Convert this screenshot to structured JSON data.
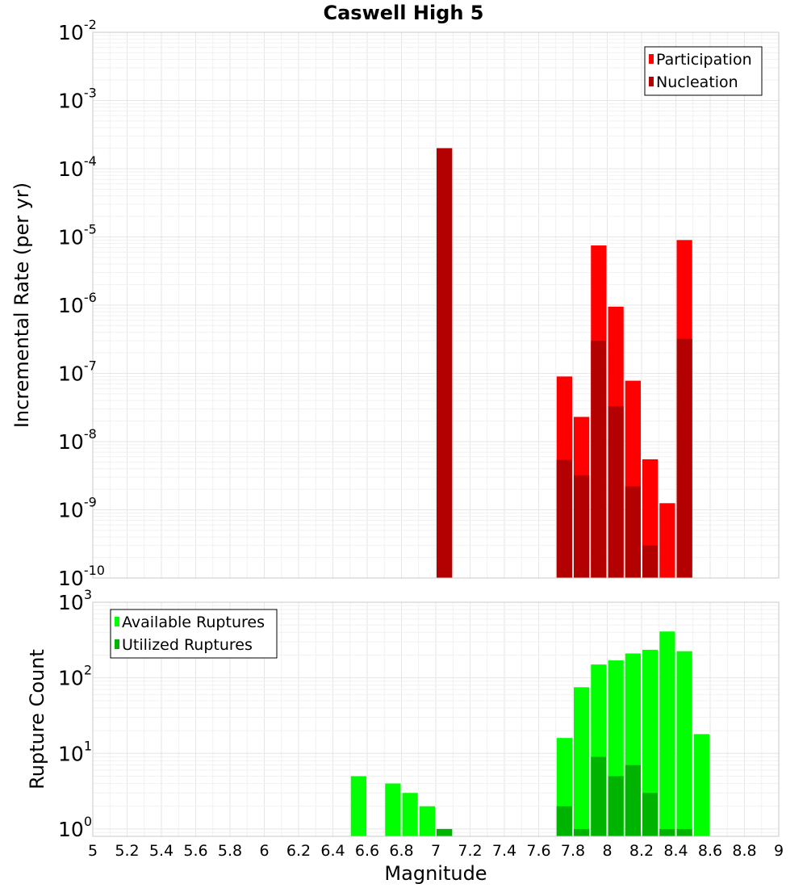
{
  "chart_data": {
    "title": "Caswell High 5",
    "xlabel": "Magnitude",
    "x_ticks": [
      "5",
      "5.2",
      "5.4",
      "5.6",
      "5.8",
      "6",
      "6.2",
      "6.4",
      "6.6",
      "6.8",
      "7",
      "7.2",
      "7.4",
      "7.6",
      "7.8",
      "8",
      "8.2",
      "8.4",
      "8.6",
      "8.8",
      "9"
    ],
    "xlim": [
      5,
      9
    ],
    "panels": [
      {
        "id": "rate",
        "type": "bar",
        "ylabel": "Incremental Rate (per yr)",
        "y_scale": "log",
        "ylim": [
          1e-10,
          0.01
        ],
        "y_ticks": [
          {
            "base": "10",
            "exp": "-10",
            "value": 1e-10
          },
          {
            "base": "10",
            "exp": "-9",
            "value": 1e-09
          },
          {
            "base": "10",
            "exp": "-8",
            "value": 1e-08
          },
          {
            "base": "10",
            "exp": "-7",
            "value": 1e-07
          },
          {
            "base": "10",
            "exp": "-6",
            "value": 1e-06
          },
          {
            "base": "10",
            "exp": "-5",
            "value": 1e-05
          },
          {
            "base": "10",
            "exp": "-4",
            "value": 0.0001
          },
          {
            "base": "10",
            "exp": "-3",
            "value": 0.001
          },
          {
            "base": "10",
            "exp": "-2",
            "value": 0.01
          }
        ],
        "legend_position": "top-right",
        "bin_width": 0.1,
        "series": [
          {
            "name": "Participation",
            "color": "#ff0000",
            "points": [
              {
                "x": 7.05,
                "y": 0.0002
              },
              {
                "x": 7.75,
                "y": 9e-08
              },
              {
                "x": 7.85,
                "y": 2.3e-08
              },
              {
                "x": 7.95,
                "y": 7.5e-06
              },
              {
                "x": 8.05,
                "y": 9.5e-07
              },
              {
                "x": 8.15,
                "y": 7.8e-08
              },
              {
                "x": 8.25,
                "y": 5.5e-09
              },
              {
                "x": 8.35,
                "y": 1.25e-09
              },
              {
                "x": 8.45,
                "y": 9e-06
              }
            ]
          },
          {
            "name": "Nucleation",
            "color": "#b30000",
            "points": [
              {
                "x": 7.05,
                "y": 0.0002
              },
              {
                "x": 7.75,
                "y": 5.4e-09
              },
              {
                "x": 7.85,
                "y": 3.2e-09
              },
              {
                "x": 7.95,
                "y": 3e-07
              },
              {
                "x": 8.05,
                "y": 3.3e-08
              },
              {
                "x": 8.15,
                "y": 2.2e-09
              },
              {
                "x": 8.25,
                "y": 3e-10
              },
              {
                "x": 8.45,
                "y": 3.2e-07
              }
            ]
          }
        ]
      },
      {
        "id": "count",
        "type": "bar",
        "ylabel": "Rupture Count",
        "y_scale": "log",
        "ylim": [
          0.8,
          1000
        ],
        "y_ticks": [
          {
            "base": "10",
            "exp": "0",
            "value": 1
          },
          {
            "base": "10",
            "exp": "1",
            "value": 10
          },
          {
            "base": "10",
            "exp": "2",
            "value": 100
          },
          {
            "base": "10",
            "exp": "3",
            "value": 1000
          }
        ],
        "legend_position": "top-left",
        "bin_width": 0.1,
        "series": [
          {
            "name": "Available Ruptures",
            "color": "#00ff00",
            "points": [
              {
                "x": 6.55,
                "y": 5
              },
              {
                "x": 6.75,
                "y": 4
              },
              {
                "x": 6.85,
                "y": 3
              },
              {
                "x": 6.95,
                "y": 2
              },
              {
                "x": 7.05,
                "y": 1
              },
              {
                "x": 7.75,
                "y": 16
              },
              {
                "x": 7.85,
                "y": 75
              },
              {
                "x": 7.95,
                "y": 150
              },
              {
                "x": 8.05,
                "y": 170
              },
              {
                "x": 8.15,
                "y": 210
              },
              {
                "x": 8.25,
                "y": 235
              },
              {
                "x": 8.35,
                "y": 410
              },
              {
                "x": 8.45,
                "y": 225
              },
              {
                "x": 8.55,
                "y": 18
              }
            ]
          },
          {
            "name": "Utilized Ruptures",
            "color": "#00b300",
            "points": [
              {
                "x": 7.05,
                "y": 1
              },
              {
                "x": 7.75,
                "y": 2
              },
              {
                "x": 7.85,
                "y": 1
              },
              {
                "x": 7.95,
                "y": 9
              },
              {
                "x": 8.05,
                "y": 5
              },
              {
                "x": 8.15,
                "y": 7
              },
              {
                "x": 8.25,
                "y": 3
              },
              {
                "x": 8.35,
                "y": 1
              },
              {
                "x": 8.45,
                "y": 1
              }
            ]
          }
        ]
      }
    ]
  }
}
